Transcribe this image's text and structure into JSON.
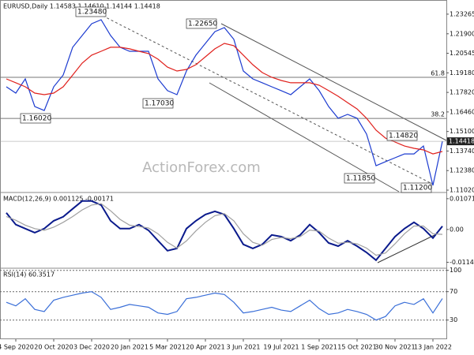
{
  "chart_data": [
    {
      "type": "line",
      "title": "EURUSD,Daily 1.14583 1.14610 1.14144 1.14418",
      "series": [
        {
          "name": "Close",
          "color": "#1c3bd0",
          "values": [
            1.1821,
            1.1777,
            1.1876,
            1.1684,
            1.1656,
            1.1821,
            1.1903,
            1.2096,
            1.2178,
            1.226,
            1.2288,
            1.2178,
            1.2096,
            1.2068,
            1.2068,
            1.2068,
            1.1876,
            1.1794,
            1.1766,
            1.1931,
            1.2041,
            1.2123,
            1.2205,
            1.2233,
            1.2151,
            1.1931,
            1.1876,
            1.1849,
            1.1821,
            1.1794,
            1.1766,
            1.1821,
            1.1876,
            1.1794,
            1.1684,
            1.1602,
            1.1629,
            1.1602,
            1.1492,
            1.1272,
            1.13,
            1.1327,
            1.1354,
            1.1354,
            1.1409,
            1.1135,
            1.1442
          ]
        },
        {
          "name": "MA",
          "color": "#e0201c",
          "values": [
            1.1876,
            1.1849,
            1.1821,
            1.1777,
            1.1766,
            1.1777,
            1.1821,
            1.1903,
            1.1986,
            1.2041,
            1.2068,
            1.2096,
            1.2096,
            1.2085,
            1.2068,
            1.2052,
            1.2013,
            1.1958,
            1.1931,
            1.1942,
            1.1975,
            1.203,
            1.2085,
            1.2123,
            1.2107,
            1.2041,
            1.1975,
            1.192,
            1.1887,
            1.1865,
            1.1849,
            1.1849,
            1.1849,
            1.1832,
            1.1794,
            1.1755,
            1.1711,
            1.1667,
            1.1602,
            1.1519,
            1.1464,
            1.1437,
            1.1409,
            1.1393,
            1.1382,
            1.1354,
            1.1371
          ]
        }
      ],
      "ylim": [
        1.1091,
        1.2425
      ],
      "yticks": [
        {
          "value": 1.23265,
          "label": "1.23265"
        },
        {
          "value": 1.219,
          "label": "1.21900"
        },
        {
          "value": 1.20545,
          "label": "1.20545"
        },
        {
          "value": 1.1918,
          "label": "1.19180"
        },
        {
          "value": 1.1782,
          "label": "1.17820"
        },
        {
          "value": 1.1646,
          "label": "1.16460"
        },
        {
          "value": 1.151,
          "label": "1.15100"
        },
        {
          "value": 1.1374,
          "label": "1.13740"
        },
        {
          "value": 1.1238,
          "label": "1.12380"
        },
        {
          "value": 1.1102,
          "label": "1.11020"
        }
      ],
      "levels": [
        {
          "value": 1.1887,
          "label": "61.8"
        },
        {
          "value": 1.1601,
          "label": "38.2"
        }
      ],
      "last_price": 1.14418,
      "annotations": [
        "1.23480",
        "1.16020",
        "1.17030",
        "1.22650",
        "1.14820",
        "1.11850",
        "1.11200"
      ],
      "watermark": "ActionForex.com"
    },
    {
      "type": "line",
      "title": "MACD(12,26,9) 0.001125 -0.00171",
      "series": [
        {
          "name": "MACD",
          "color": "#0a1a8c",
          "values": [
            0.0058,
            0.0017,
            0.0003,
            -0.0011,
            0.0003,
            0.003,
            0.0044,
            0.0072,
            0.0099,
            0.0099,
            0.0085,
            0.003,
            0.0003,
            0.0003,
            0.0017,
            -0.0003,
            -0.0039,
            -0.0074,
            -0.0066,
            0.0003,
            0.003,
            0.0052,
            0.0063,
            0.0052,
            0.0003,
            -0.0052,
            -0.0066,
            -0.0052,
            -0.0019,
            -0.0025,
            -0.0039,
            -0.0019,
            0.0017,
            -0.0011,
            -0.0047,
            -0.0058,
            -0.0039,
            -0.0058,
            -0.008,
            -0.0107,
            -0.0066,
            -0.0025,
            0.0003,
            0.0025,
            0.0003,
            -0.003,
            0.001125
          ]
        },
        {
          "name": "Signal",
          "color": "#a0a0a0",
          "values": [
            0.0045,
            0.0032,
            0.0015,
            0.0003,
            -0.0003,
            0.0008,
            0.0025,
            0.0045,
            0.0068,
            0.0085,
            0.009,
            0.0065,
            0.0035,
            0.0015,
            0.001,
            0.0005,
            -0.0015,
            -0.0045,
            -0.0065,
            -0.004,
            -0.0005,
            0.0025,
            0.0048,
            0.0055,
            0.003,
            -0.0015,
            -0.0045,
            -0.0055,
            -0.0035,
            -0.0028,
            -0.0032,
            -0.0025,
            -0.0002,
            -0.0006,
            -0.003,
            -0.0048,
            -0.0045,
            -0.005,
            -0.0065,
            -0.009,
            -0.0082,
            -0.005,
            -0.0015,
            0.0012,
            0.0012,
            -0.0015,
            -0.00171
          ]
        }
      ],
      "ylim": [
        -0.0135,
        0.0126
      ],
      "yticks": [
        0.010715,
        {
          "value": 0,
          "label": "0.00"
        },
        -0.011424
      ]
    },
    {
      "type": "line",
      "title": "RSI(14) 60.3517",
      "categories": [
        null,
        "4 Sep 2020",
        null,
        null,
        null,
        "20 Oct 2020",
        null,
        null,
        null,
        "3 Dec 2020",
        null,
        null,
        null,
        "20 Jan 2021",
        null,
        null,
        null,
        "5 Mar 2021",
        null,
        null,
        null,
        "20 Apr 2021",
        null,
        null,
        null,
        "3 Jun 2021",
        null,
        null,
        null,
        "19 Jul 2021",
        null,
        null,
        null,
        "1 Sep 2021",
        null,
        null,
        null,
        "15 Oct 2021",
        null,
        null,
        null,
        "30 Nov 2021",
        null,
        null,
        null,
        "13 Jan 2022",
        null
      ],
      "series": [
        {
          "name": "RSI",
          "color": "#3a6fd8",
          "values": [
            55,
            50,
            60,
            45,
            42,
            58,
            62,
            65,
            68,
            70,
            62,
            45,
            48,
            52,
            50,
            48,
            40,
            38,
            42,
            60,
            62,
            65,
            68,
            66,
            55,
            40,
            42,
            45,
            48,
            44,
            42,
            50,
            58,
            46,
            38,
            40,
            45,
            42,
            38,
            30,
            35,
            50,
            55,
            52,
            60,
            40,
            60.3517
          ]
        }
      ],
      "ylim": [
        3,
        103
      ],
      "yticks": [
        100,
        70,
        30
      ],
      "grid": true
    }
  ]
}
